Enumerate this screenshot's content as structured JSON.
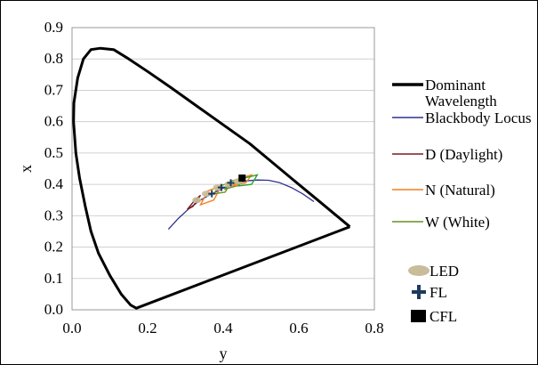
{
  "chart_data": {
    "type": "scatter",
    "xlabel": "y",
    "ylabel": "x",
    "xlim": [
      0,
      0.8
    ],
    "ylim": [
      0,
      0.9
    ],
    "x_ticks": [
      "0.0",
      "0.2",
      "0.4",
      "0.6",
      "0.8"
    ],
    "y_ticks": [
      "0.0",
      "0.1",
      "0.2",
      "0.3",
      "0.4",
      "0.5",
      "0.6",
      "0.7",
      "0.8",
      "0.9"
    ],
    "grid": "horizontal",
    "legend_position": "right",
    "series": [
      {
        "name": "Dominant Wavelength",
        "legend_lines": [
          "Dominant",
          "Wavelength"
        ],
        "kind": "line",
        "color": "#000000",
        "points": [
          [
            0.735,
            0.265
          ],
          [
            0.7,
            0.3
          ],
          [
            0.66,
            0.34
          ],
          [
            0.62,
            0.38
          ],
          [
            0.58,
            0.42
          ],
          [
            0.53,
            0.47
          ],
          [
            0.47,
            0.53
          ],
          [
            0.4,
            0.59
          ],
          [
            0.33,
            0.65
          ],
          [
            0.26,
            0.71
          ],
          [
            0.2,
            0.76
          ],
          [
            0.15,
            0.8
          ],
          [
            0.11,
            0.83
          ],
          [
            0.075,
            0.834
          ],
          [
            0.05,
            0.83
          ],
          [
            0.03,
            0.8
          ],
          [
            0.015,
            0.74
          ],
          [
            0.005,
            0.66
          ],
          [
            0.004,
            0.6
          ],
          [
            0.01,
            0.5
          ],
          [
            0.02,
            0.42
          ],
          [
            0.035,
            0.33
          ],
          [
            0.05,
            0.25
          ],
          [
            0.07,
            0.18
          ],
          [
            0.1,
            0.11
          ],
          [
            0.13,
            0.05
          ],
          [
            0.155,
            0.015
          ],
          [
            0.17,
            0.005
          ],
          [
            0.735,
            0.265
          ]
        ]
      },
      {
        "name": "Blackbody Locus",
        "kind": "line",
        "color": "#2e3192",
        "points": [
          [
            0.255,
            0.257
          ],
          [
            0.28,
            0.29
          ],
          [
            0.31,
            0.323
          ],
          [
            0.34,
            0.35
          ],
          [
            0.37,
            0.37
          ],
          [
            0.4,
            0.388
          ],
          [
            0.43,
            0.402
          ],
          [
            0.46,
            0.411
          ],
          [
            0.49,
            0.414
          ],
          [
            0.52,
            0.413
          ],
          [
            0.55,
            0.405
          ],
          [
            0.58,
            0.39
          ],
          [
            0.61,
            0.37
          ],
          [
            0.64,
            0.345
          ]
        ]
      },
      {
        "name": "D (Daylight)",
        "kind": "quadrangle",
        "color": "#7b1c1c",
        "points": [
          [
            0.305,
            0.32
          ],
          [
            0.325,
            0.35
          ],
          [
            0.34,
            0.365
          ],
          [
            0.32,
            0.33
          ]
        ]
      },
      {
        "name": "N (Natural)",
        "kind": "quadrangle",
        "color": "#f47f20",
        "points": [
          [
            0.34,
            0.335
          ],
          [
            0.36,
            0.38
          ],
          [
            0.395,
            0.395
          ],
          [
            0.375,
            0.35
          ]
        ]
      },
      {
        "name": "W (White)",
        "kind": "quadrangle",
        "color": "#6b8e23",
        "points": [
          [
            0.375,
            0.37
          ],
          [
            0.39,
            0.395
          ],
          [
            0.42,
            0.405
          ],
          [
            0.405,
            0.375
          ]
        ]
      },
      {
        "name": "",
        "kind": "quadrangle",
        "color": "#6b8e23",
        "points": [
          [
            0.405,
            0.385
          ],
          [
            0.42,
            0.41
          ],
          [
            0.45,
            0.42
          ],
          [
            0.435,
            0.395
          ]
        ]
      },
      {
        "name": "",
        "kind": "quadrangle",
        "color": "#f47f20",
        "points": [
          [
            0.425,
            0.395
          ],
          [
            0.445,
            0.42
          ],
          [
            0.475,
            0.43
          ],
          [
            0.46,
            0.405
          ]
        ]
      },
      {
        "name": "",
        "kind": "quadrangle",
        "color": "#2ca02c",
        "points": [
          [
            0.44,
            0.395
          ],
          [
            0.455,
            0.42
          ],
          [
            0.49,
            0.43
          ],
          [
            0.475,
            0.4
          ]
        ]
      },
      {
        "name": "LED",
        "kind": "marker-ellipse",
        "color": "#c8bc9a",
        "points": [
          [
            0.33,
            0.35
          ],
          [
            0.355,
            0.37
          ],
          [
            0.385,
            0.39
          ],
          [
            0.415,
            0.4
          ],
          [
            0.44,
            0.41
          ]
        ]
      },
      {
        "name": "FL",
        "kind": "marker-plus",
        "color": "#1f3a5f",
        "points": [
          [
            0.37,
            0.37
          ],
          [
            0.395,
            0.39
          ],
          [
            0.42,
            0.405
          ]
        ]
      },
      {
        "name": "CFL",
        "kind": "marker-square",
        "color": "#000000",
        "points": [
          [
            0.45,
            0.42
          ]
        ]
      }
    ]
  }
}
